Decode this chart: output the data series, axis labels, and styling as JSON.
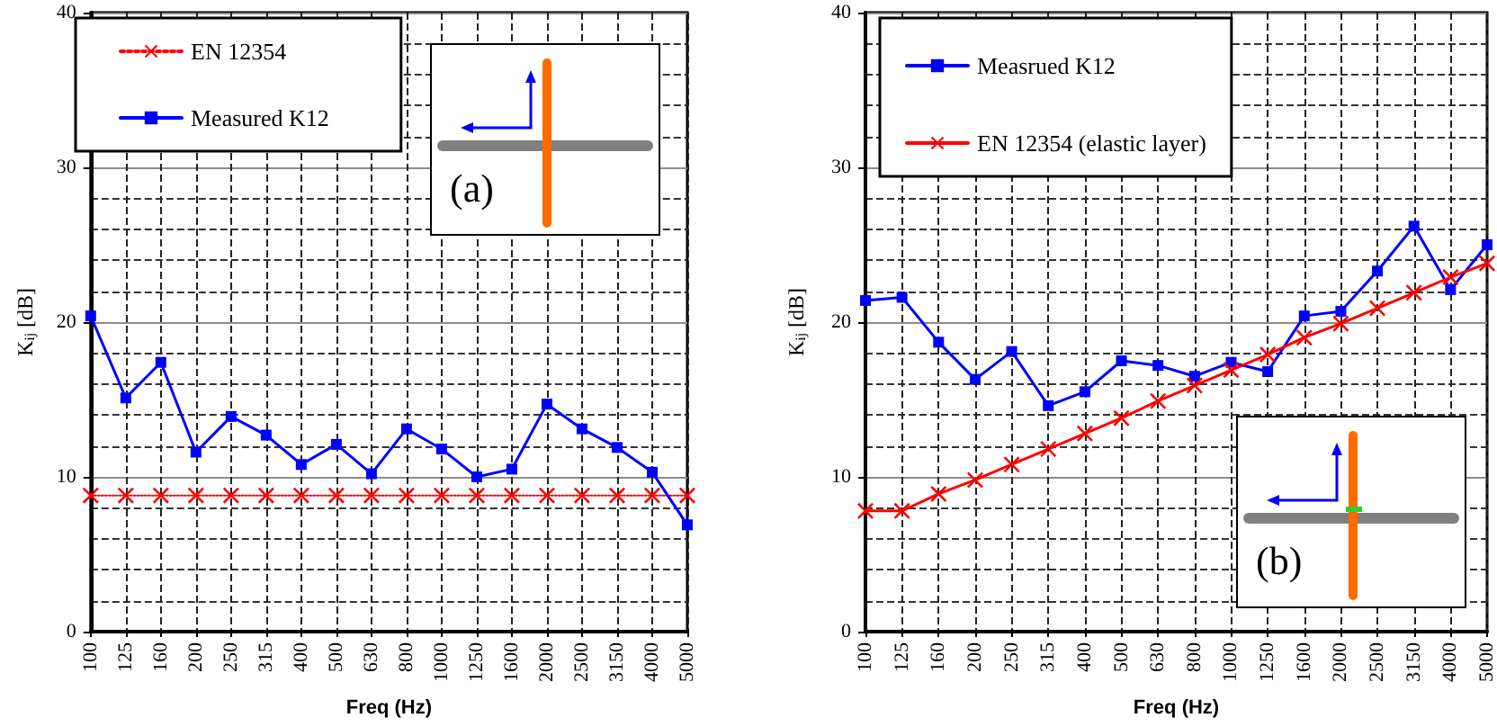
{
  "chart_data": [
    {
      "type": "line",
      "xlabel": "Freq (Hz)",
      "ylabel": "K$_{ij}$ [dB]",
      "categories": [
        "100",
        "125",
        "160",
        "200",
        "250",
        "315",
        "400",
        "500",
        "630",
        "800",
        "1000",
        "1250",
        "1600",
        "2000",
        "2500",
        "3150",
        "4000",
        "5000"
      ],
      "series": [
        {
          "name": "EN 12354",
          "color": "#ff0000",
          "marker": "cross",
          "line_style": "dotted",
          "values": [
            8.8,
            8.8,
            8.8,
            8.8,
            8.8,
            8.8,
            8.8,
            8.8,
            8.8,
            8.8,
            8.8,
            8.8,
            8.8,
            8.8,
            8.8,
            8.8,
            8.8,
            8.8
          ]
        },
        {
          "name": "Measured K12",
          "color": "#0000ff",
          "marker": "square",
          "line_style": "solid",
          "values": [
            20.4,
            15.1,
            17.4,
            11.6,
            13.9,
            12.7,
            10.8,
            12.1,
            10.2,
            13.1,
            11.8,
            10.0,
            10.5,
            14.7,
            13.1,
            11.9,
            10.3,
            6.9
          ]
        }
      ],
      "ylim": [
        0,
        40
      ],
      "yticks": [
        0,
        10,
        20,
        30,
        40
      ],
      "grid": true,
      "legend": "top left",
      "annotations": [
        "(a)"
      ]
    },
    {
      "type": "line",
      "xlabel": "Freq (Hz)",
      "ylabel": "K$_{ij}$ [dB]",
      "categories": [
        "100",
        "125",
        "160",
        "200",
        "250",
        "315",
        "400",
        "500",
        "630",
        "800",
        "1000",
        "1250",
        "1600",
        "2000",
        "2500",
        "3150",
        "4000",
        "5000"
      ],
      "series": [
        {
          "name": "Measrued K12",
          "color": "#0000ff",
          "marker": "square",
          "line_style": "solid",
          "values": [
            21.4,
            21.6,
            18.7,
            16.3,
            18.1,
            14.6,
            15.5,
            17.5,
            17.2,
            16.5,
            17.4,
            16.8,
            20.4,
            20.7,
            23.3,
            26.2,
            22.1,
            25.0
          ]
        },
        {
          "name": "EN 12354 (elastic layer)",
          "color": "#ff0000",
          "marker": "cross",
          "line_style": "solid",
          "values": [
            7.8,
            7.8,
            8.9,
            9.8,
            10.8,
            11.8,
            12.8,
            13.8,
            14.9,
            15.9,
            16.9,
            17.9,
            19.0,
            19.9,
            20.9,
            21.9,
            22.9,
            23.8
          ]
        }
      ],
      "ylim": [
        0,
        40
      ],
      "yticks": [
        0,
        10,
        20,
        30,
        40
      ],
      "grid": true,
      "legend": "top left",
      "annotations": [
        "(b)"
      ]
    }
  ]
}
